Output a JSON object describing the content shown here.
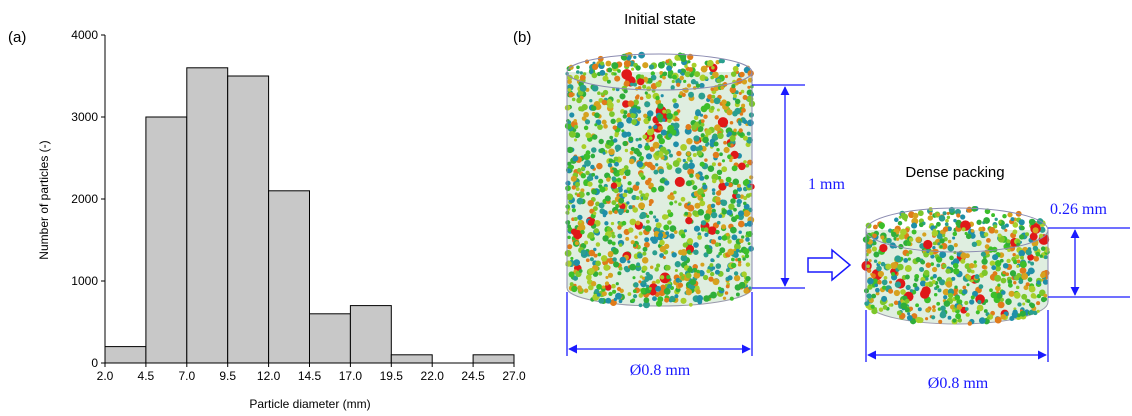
{
  "panel_labels": [
    "(a)",
    "(b)"
  ],
  "chart_data": {
    "type": "histogram",
    "xlabel": "Particle diameter (mm)",
    "ylabel": "Number of particles (-)",
    "bins": [
      2.0,
      4.5,
      7.0,
      9.5,
      12.0,
      14.5,
      17.0,
      19.5,
      22.0,
      24.5,
      27.0
    ],
    "values": [
      200,
      3000,
      3600,
      3500,
      2100,
      600,
      700,
      100,
      0,
      100
    ],
    "color": "#c8c8c8",
    "xlim": [
      2,
      27
    ],
    "xticks": [
      {
        "value": 2,
        "label": "2.0"
      },
      {
        "value": 4.5,
        "label": "4.5"
      },
      {
        "value": 7,
        "label": "7.0"
      },
      {
        "value": 9.5,
        "label": "9.5"
      },
      {
        "value": 12,
        "label": "12.0"
      },
      {
        "value": 14.5,
        "label": "14.5"
      },
      {
        "value": 17,
        "label": "17.0"
      },
      {
        "value": 19.5,
        "label": "19.5"
      },
      {
        "value": 22,
        "label": "22.0"
      },
      {
        "value": 24.5,
        "label": "24.5"
      },
      {
        "value": 27,
        "label": "27.0"
      }
    ],
    "ylim": [
      0,
      4000
    ],
    "yticks": [
      0,
      1000,
      2000,
      3000,
      4000
    ]
  },
  "diagram": {
    "initial_state": {
      "title": "Initial state",
      "height_label": "1 mm",
      "diameter_label": "Ø0.8 mm"
    },
    "dense_packing": {
      "title": "Dense packing",
      "height_label": "0.26 mm",
      "diameter_label": "Ø0.8 mm"
    }
  }
}
